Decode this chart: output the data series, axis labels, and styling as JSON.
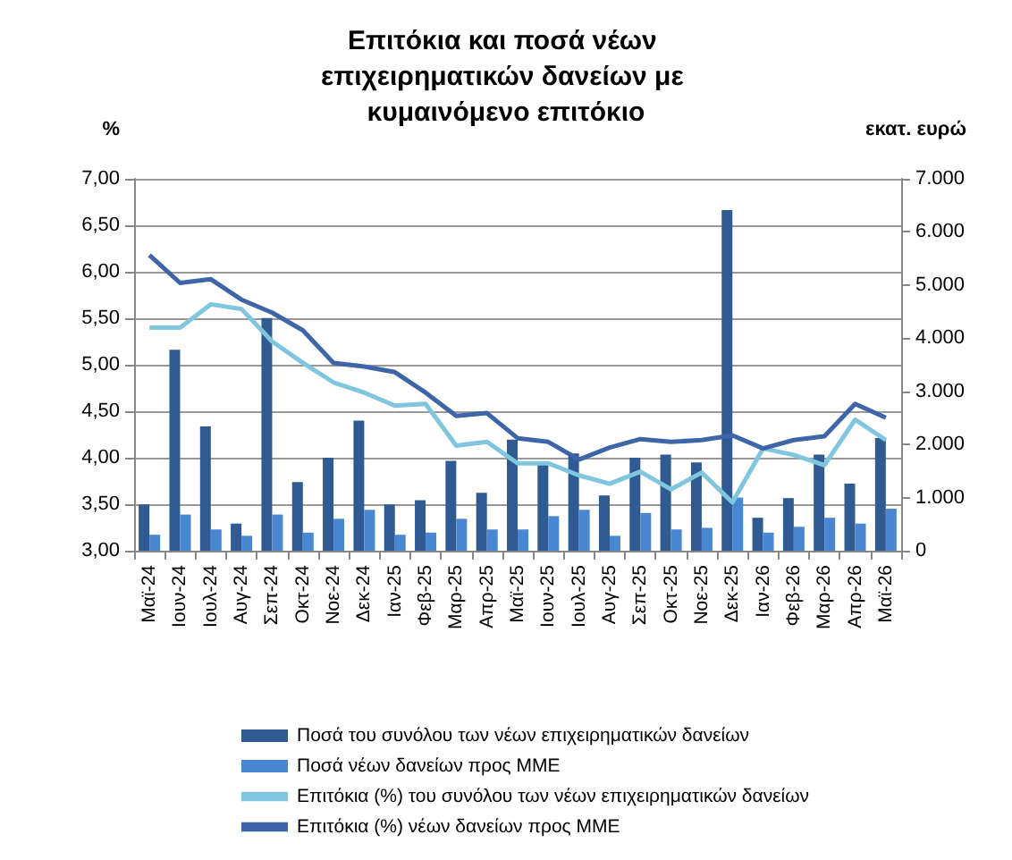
{
  "chart_data": {
    "type": "bar",
    "title": "Επιτόκια και ποσά νέων επιχειρηματικών δανείων με κυμαινόμενο επιτόκιο",
    "ylabel": "%",
    "y2label": "εκατ. ευρώ",
    "categories": [
      "Μαϊ-24",
      "Ιουν-24",
      "Ιουλ-24",
      "Αυγ-24",
      "Σεπ-24",
      "Οκτ-24",
      "Νοε-24",
      "Δεκ-24",
      "Ιαν-25",
      "Φεβ-25",
      "Μαρ-25",
      "Απρ-25",
      "Μαϊ-25",
      "Ιουν-25",
      "Ιουλ-25",
      "Αυγ-25",
      "Σεπ-25",
      "Οκτ-25",
      "Νοε-25",
      "Δεκ-25",
      "Ιαν-26",
      "Φεβ-26",
      "Μαρ-26",
      "Απρ-26",
      "Μαϊ-26"
    ],
    "series": [
      {
        "name": "Ποσά του συνόλου των νέων επιχειρηματικών δανείων",
        "axis": "y2",
        "color": "#2f5a92",
        "values": [
          870,
          3780,
          2340,
          510,
          4380,
          1290,
          1750,
          2450,
          870,
          950,
          1690,
          1090,
          2090,
          1640,
          1830,
          1040,
          1750,
          1810,
          1660,
          6410,
          620,
          990,
          1810,
          1260,
          2120
        ]
      },
      {
        "name": "Ποσά νέων δανείων προς ΜΜΕ",
        "axis": "y2",
        "color": "#4a87d2",
        "values": [
          300,
          680,
          400,
          280,
          680,
          340,
          600,
          770,
          300,
          340,
          600,
          400,
          400,
          650,
          770,
          280,
          710,
          400,
          430,
          1000,
          340,
          450,
          620,
          510,
          790
        ]
      },
      {
        "name": "Επιτόκια (%) του συνόλου των νέων επιχειρηματικών δανείων",
        "type": "line",
        "color": "#7fc6de",
        "values": [
          5.4,
          5.4,
          5.65,
          5.6,
          5.25,
          5.02,
          4.81,
          4.7,
          4.56,
          4.58,
          4.13,
          4.17,
          3.94,
          3.94,
          3.81,
          3.72,
          3.85,
          3.66,
          3.84,
          3.52,
          4.1,
          4.03,
          3.92,
          4.41,
          4.19
        ]
      },
      {
        "name": "Επιτόκια (%) νέων δανείων προς ΜΜΕ",
        "type": "line",
        "color": "#3d65a8",
        "values": [
          6.18,
          5.88,
          5.92,
          5.7,
          5.56,
          5.37,
          5.02,
          4.98,
          4.92,
          4.7,
          4.45,
          4.48,
          4.21,
          4.17,
          3.98,
          4.11,
          4.2,
          4.17,
          4.19,
          4.24,
          4.1,
          4.19,
          4.23,
          4.58,
          4.43
        ]
      }
    ],
    "ylim": [
      3,
      7
    ],
    "yticks": [
      {
        "value": 3,
        "label": "3,00"
      },
      {
        "value": 3.5,
        "label": "3,50"
      },
      {
        "value": 4,
        "label": "4,00"
      },
      {
        "value": 4.5,
        "label": "4,50"
      },
      {
        "value": 5,
        "label": "5,00"
      },
      {
        "value": 5.5,
        "label": "5,50"
      },
      {
        "value": 6,
        "label": "6,00"
      },
      {
        "value": 6.5,
        "label": "6,50"
      },
      {
        "value": 7,
        "label": "7,00"
      }
    ],
    "y2lim": [
      0,
      7000
    ],
    "y2ticks": [
      0,
      {
        "value": 1000,
        "label": "1.000"
      },
      {
        "value": 2000,
        "label": "2.000"
      },
      {
        "value": 3000,
        "label": "3.000"
      },
      {
        "value": 4000,
        "label": "4.000"
      },
      {
        "value": 5000,
        "label": "5.000"
      },
      {
        "value": 6000,
        "label": "6.000"
      },
      {
        "value": 7000,
        "label": "7.000"
      }
    ],
    "grid": "y",
    "legend": "bottom",
    "marker": "none",
    "line_style": "solid"
  }
}
